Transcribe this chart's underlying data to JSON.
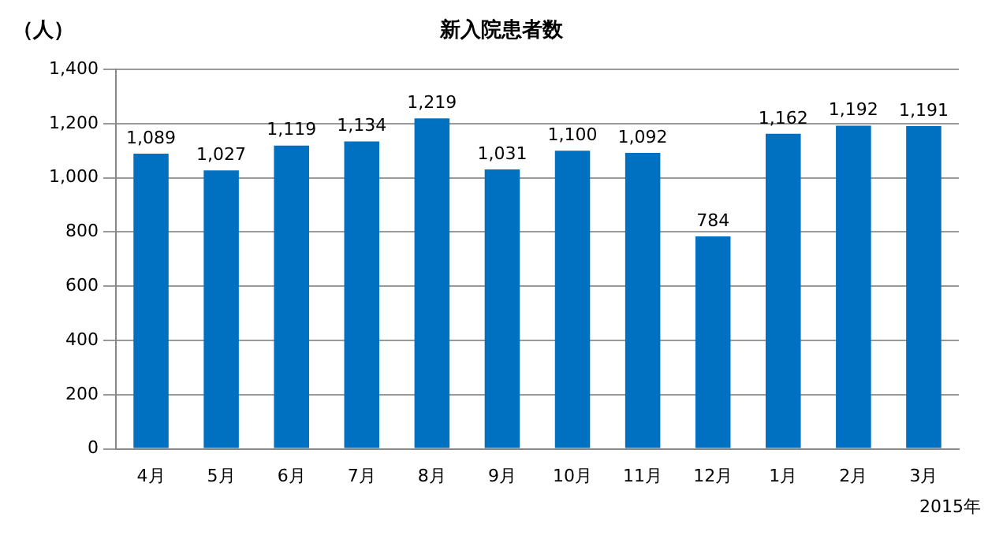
{
  "chart_data": {
    "type": "bar",
    "title": "新入院患者数",
    "ylabel": "（人）",
    "annotations": [
      "2015年"
    ],
    "categories": [
      "4月",
      "5月",
      "6月",
      "7月",
      "8月",
      "9月",
      "10月",
      "11月",
      "12月",
      "1月",
      "2月",
      "3月"
    ],
    "values": [
      1089,
      1027,
      1119,
      1134,
      1219,
      1031,
      1100,
      1092,
      784,
      1162,
      1192,
      1191
    ],
    "value_labels": [
      "1,089",
      "1,027",
      "1,119",
      "1,134",
      "1,219",
      "1,031",
      "1,100",
      "1,092",
      "784",
      "1,162",
      "1,192",
      "1,191"
    ],
    "color": "#0070c0",
    "ylim": [
      0,
      1400
    ],
    "yticks": [
      0,
      200,
      400,
      600,
      800,
      {
        "value": 1000,
        "label": "1,000"
      },
      {
        "value": 1200,
        "label": "1,200"
      },
      {
        "value": 1400,
        "label": "1,400"
      }
    ],
    "grid": "y"
  }
}
